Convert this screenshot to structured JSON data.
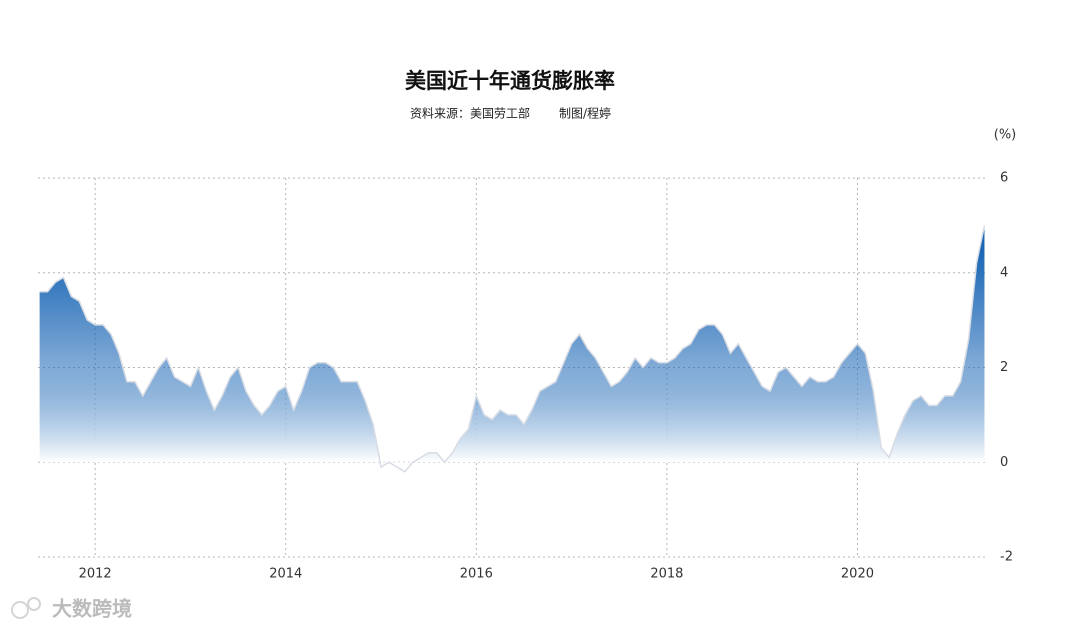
{
  "chart_data": {
    "type": "area",
    "title": "美国近十年通货膨胀率",
    "source": "资料来源：美国劳工部",
    "author": "制图/程婷",
    "y_unit_label": "(%)",
    "watermark": "大数跨境",
    "color": "#1a66b5",
    "grid": true,
    "xlim": [
      2011.4,
      2021.37
    ],
    "xticks": [
      2012,
      2014,
      2016,
      2018,
      2020
    ],
    "ylim": [
      -2,
      6
    ],
    "yticks": [
      -2,
      0,
      2,
      4,
      6
    ],
    "x": [
      2011.417,
      2011.5,
      2011.583,
      2011.667,
      2011.75,
      2011.833,
      2011.917,
      2012,
      2012.083,
      2012.167,
      2012.25,
      2012.333,
      2012.417,
      2012.5,
      2012.583,
      2012.667,
      2012.75,
      2012.833,
      2012.917,
      2013,
      2013.083,
      2013.167,
      2013.25,
      2013.333,
      2013.417,
      2013.5,
      2013.583,
      2013.667,
      2013.75,
      2013.833,
      2013.917,
      2014,
      2014.083,
      2014.167,
      2014.25,
      2014.333,
      2014.417,
      2014.5,
      2014.583,
      2014.667,
      2014.75,
      2014.833,
      2014.917,
      2015,
      2015.083,
      2015.167,
      2015.25,
      2015.333,
      2015.417,
      2015.5,
      2015.583,
      2015.667,
      2015.75,
      2015.833,
      2015.917,
      2016,
      2016.083,
      2016.167,
      2016.25,
      2016.333,
      2016.417,
      2016.5,
      2016.583,
      2016.667,
      2016.75,
      2016.833,
      2016.917,
      2017,
      2017.083,
      2017.167,
      2017.25,
      2017.333,
      2017.417,
      2017.5,
      2017.583,
      2017.667,
      2017.75,
      2017.833,
      2017.917,
      2018,
      2018.083,
      2018.167,
      2018.25,
      2018.333,
      2018.417,
      2018.5,
      2018.583,
      2018.667,
      2018.75,
      2018.833,
      2018.917,
      2019,
      2019.083,
      2019.167,
      2019.25,
      2019.333,
      2019.417,
      2019.5,
      2019.583,
      2019.667,
      2019.75,
      2019.833,
      2019.917,
      2020,
      2020.083,
      2020.167,
      2020.25,
      2020.333,
      2020.417,
      2020.5,
      2020.583,
      2020.667,
      2020.75,
      2020.833,
      2020.917,
      2021,
      2021.083,
      2021.167,
      2021.25,
      2021.333
    ],
    "values": [
      3.6,
      3.6,
      3.8,
      3.9,
      3.5,
      3.4,
      3.0,
      2.9,
      2.9,
      2.7,
      2.3,
      1.7,
      1.7,
      1.4,
      1.7,
      2.0,
      2.2,
      1.8,
      1.7,
      1.6,
      2.0,
      1.5,
      1.1,
      1.4,
      1.8,
      2.0,
      1.5,
      1.2,
      1.0,
      1.2,
      1.5,
      1.6,
      1.1,
      1.5,
      2.0,
      2.1,
      2.1,
      2.0,
      1.7,
      1.7,
      1.7,
      1.3,
      0.8,
      -0.1,
      0.0,
      -0.1,
      -0.2,
      0.0,
      0.1,
      0.2,
      0.2,
      0.0,
      0.2,
      0.5,
      0.7,
      1.4,
      1.0,
      0.9,
      1.1,
      1.0,
      1.0,
      0.8,
      1.1,
      1.5,
      1.6,
      1.7,
      2.1,
      2.5,
      2.7,
      2.4,
      2.2,
      1.9,
      1.6,
      1.7,
      1.9,
      2.2,
      2.0,
      2.2,
      2.1,
      2.1,
      2.2,
      2.4,
      2.5,
      2.8,
      2.9,
      2.9,
      2.7,
      2.3,
      2.5,
      2.2,
      1.9,
      1.6,
      1.5,
      1.9,
      2.0,
      1.8,
      1.6,
      1.8,
      1.7,
      1.7,
      1.8,
      2.1,
      2.3,
      2.5,
      2.3,
      1.5,
      0.3,
      0.1,
      0.6,
      1.0,
      1.3,
      1.4,
      1.2,
      1.2,
      1.4,
      1.4,
      1.7,
      2.6,
      4.2,
      5.0
    ]
  }
}
